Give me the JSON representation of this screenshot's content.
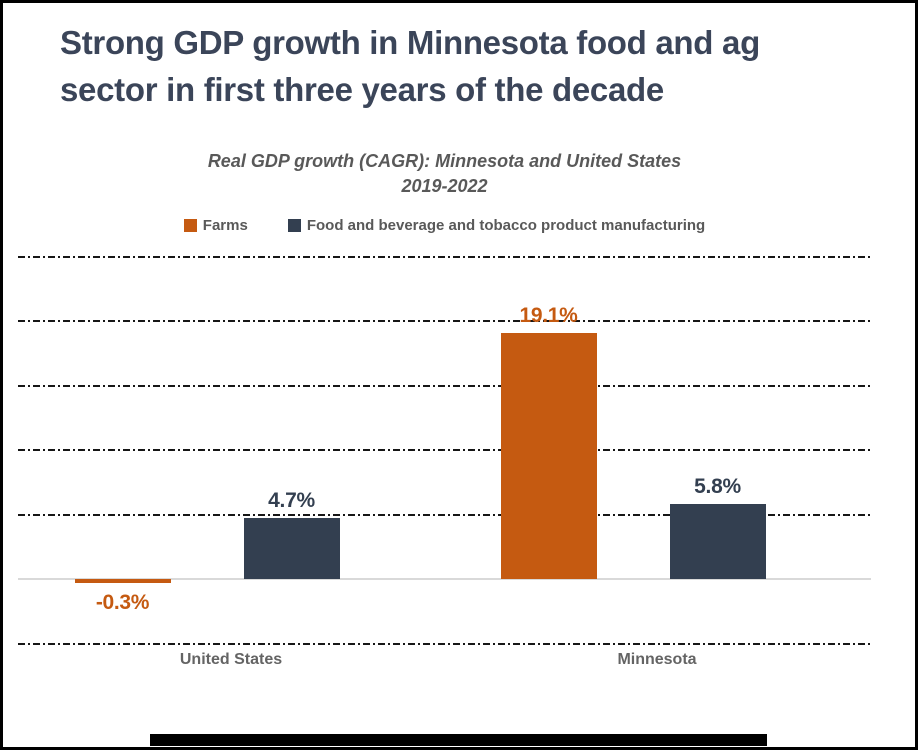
{
  "title": {
    "line1": "Strong GDP growth in Minnesota food and ag",
    "line2": "sector in first three years of the decade"
  },
  "subtitle": {
    "line1": "Real GDP growth (CAGR): Minnesota and United States",
    "line2": "2019-2022"
  },
  "legend": [
    {
      "label": "Farms",
      "color": "#C55A11"
    },
    {
      "label": "Food and beverage and tobacco product manufacturing",
      "color": "#333F50"
    }
  ],
  "colors": {
    "orange": "#C55A11",
    "navy": "#333F50",
    "title_text": "#3B4559",
    "gray_text": "#595959",
    "baseline": "#D9D9D9",
    "gridline": "#161616"
  },
  "chart_data": {
    "type": "bar",
    "title": "Real GDP growth (CAGR): Minnesota and United States 2019-2022",
    "categories": [
      "United States",
      "Minnesota"
    ],
    "series": [
      {
        "name": "Farms",
        "color": "#C55A11",
        "values": [
          -0.3,
          19.1
        ],
        "labels": [
          "-0.3%",
          "19.1%"
        ]
      },
      {
        "name": "Food and beverage and tobacco product manufacturing",
        "color": "#333F50",
        "values": [
          4.7,
          5.8
        ],
        "labels": [
          "4.7%",
          "5.8%"
        ]
      }
    ],
    "ylim": [
      -5,
      25
    ],
    "gridline_step": 5,
    "grid": "horizontal dash-dot",
    "legend_position": "top",
    "ylabel": "",
    "xlabel": ""
  }
}
